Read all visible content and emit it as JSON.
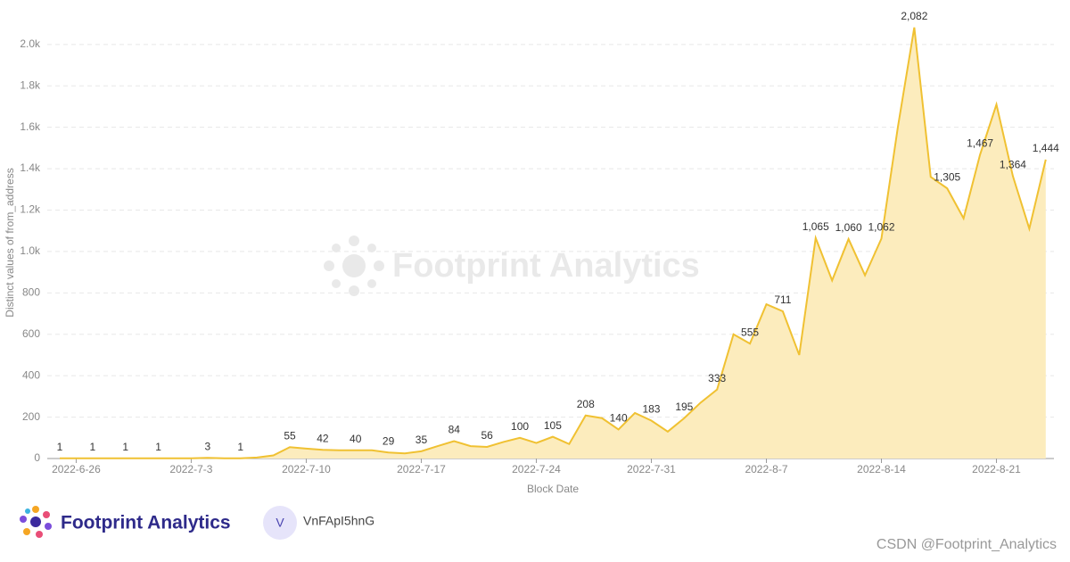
{
  "chart_data": {
    "type": "area",
    "y_label": "Distinct values of from_address",
    "x_label": "Block Date",
    "categories": [
      null,
      "2022-6-26",
      null,
      null,
      null,
      null,
      null,
      null,
      "2022-7-3",
      null,
      null,
      null,
      null,
      null,
      null,
      "2022-7-10",
      null,
      null,
      null,
      null,
      null,
      null,
      "2022-7-17",
      null,
      null,
      null,
      null,
      null,
      null,
      "2022-7-24",
      null,
      null,
      null,
      null,
      null,
      null,
      "2022-7-31",
      null,
      null,
      null,
      null,
      null,
      null,
      "2022-8-7",
      null,
      null,
      null,
      null,
      null,
      null,
      "2022-8-14",
      null,
      null,
      null,
      null,
      null,
      null,
      "2022-8-21",
      null,
      null,
      null
    ],
    "values": [
      1,
      1,
      1,
      1,
      1,
      1,
      1,
      1,
      1,
      3,
      1,
      1,
      5,
      15,
      55,
      48,
      42,
      40,
      40,
      40,
      29,
      25,
      35,
      60,
      84,
      60,
      56,
      80,
      100,
      75,
      105,
      70,
      208,
      195,
      140,
      220,
      183,
      130,
      195,
      270,
      333,
      600,
      555,
      745,
      711,
      500,
      1065,
      860,
      1060,
      885,
      1062,
      1600,
      2082,
      1360,
      1305,
      1160,
      1467,
      1710,
      1364,
      1110,
      1444
    ],
    "value_labels": [
      "1",
      null,
      "1",
      null,
      "1",
      null,
      "1",
      null,
      null,
      "3",
      null,
      "1",
      null,
      null,
      "55",
      null,
      "42",
      null,
      "40",
      null,
      "29",
      null,
      "35",
      null,
      "84",
      null,
      "56",
      null,
      "100",
      null,
      "105",
      null,
      "208",
      null,
      "140",
      null,
      "183",
      null,
      "195",
      null,
      "333",
      null,
      "555",
      null,
      "711",
      null,
      "1,065",
      null,
      "1,060",
      null,
      "1,062",
      null,
      "2,082",
      null,
      "1,305",
      null,
      "1,467",
      null,
      "1,364",
      null,
      "1,444"
    ],
    "color": "#f0c132",
    "fill": "#fcecbd",
    "ylim": [
      0,
      2150
    ],
    "yticks": [
      0,
      200,
      400,
      600,
      800,
      {
        "value": 1000,
        "label": "1.0k"
      },
      {
        "value": 1200,
        "label": "1.2k"
      },
      {
        "value": 1400,
        "label": "1.4k"
      },
      {
        "value": 1600,
        "label": "1.6k"
      },
      {
        "value": 1800,
        "label": "1.8k"
      },
      {
        "value": 2000,
        "label": "2.0k"
      }
    ],
    "grid": true
  },
  "watermark": "Footprint Analytics",
  "footer": {
    "brand": "Footprint Analytics",
    "avatar": "V",
    "user": "VnFApI5hnG",
    "credit": "CSDN @Footprint_Analytics"
  }
}
